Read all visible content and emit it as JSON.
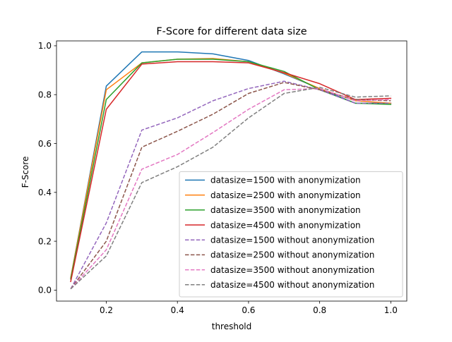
{
  "chart_data": {
    "type": "line",
    "title": "F-Score for different data size",
    "xlabel": "threshold",
    "ylabel": "F-Score",
    "xlim": [
      0.06,
      1.045
    ],
    "ylim": [
      -0.045,
      1.02
    ],
    "xticks": [
      0.2,
      0.4,
      0.6,
      0.8,
      1.0
    ],
    "xtick_labels": [
      "0.2",
      "0.4",
      "0.6",
      "0.8",
      "1.0"
    ],
    "yticks": [
      0.0,
      0.2,
      0.4,
      0.6,
      0.8,
      1.0
    ],
    "ytick_labels": [
      "0.0",
      "0.2",
      "0.4",
      "0.6",
      "0.8",
      "1.0"
    ],
    "grid": false,
    "legend_position": "lower-right",
    "x": [
      0.1,
      0.2,
      0.3,
      0.4,
      0.5,
      0.6,
      0.7,
      0.8,
      0.9,
      1.0
    ],
    "series": [
      {
        "name": "datasize=1500 with anonymization",
        "color": "#1f77b4",
        "style": "solid",
        "values": [
          0.05,
          0.835,
          0.975,
          0.975,
          0.967,
          0.94,
          0.885,
          0.825,
          0.765,
          0.765
        ]
      },
      {
        "name": "datasize=2500 with anonymization",
        "color": "#ff7f0e",
        "style": "solid",
        "values": [
          0.05,
          0.82,
          0.93,
          0.945,
          0.948,
          0.935,
          0.888,
          0.825,
          0.775,
          0.765
        ]
      },
      {
        "name": "datasize=3500 with anonymization",
        "color": "#2ca02c",
        "style": "solid",
        "values": [
          0.045,
          0.78,
          0.93,
          0.945,
          0.945,
          0.935,
          0.895,
          0.82,
          0.765,
          0.76
        ]
      },
      {
        "name": "datasize=4500 with anonymization",
        "color": "#d62728",
        "style": "solid",
        "values": [
          0.035,
          0.74,
          0.925,
          0.935,
          0.935,
          0.93,
          0.89,
          0.845,
          0.78,
          0.785
        ]
      },
      {
        "name": "datasize=1500 without anonymization",
        "color": "#9467bd",
        "style": "dashed",
        "values": [
          0.005,
          0.275,
          0.655,
          0.705,
          0.775,
          0.825,
          0.855,
          0.82,
          0.765,
          0.765
        ]
      },
      {
        "name": "datasize=2500 without anonymization",
        "color": "#8c564b",
        "style": "dashed",
        "values": [
          0.005,
          0.2,
          0.585,
          0.65,
          0.72,
          0.805,
          0.85,
          0.82,
          0.78,
          0.775
        ]
      },
      {
        "name": "datasize=3500 without anonymization",
        "color": "#e377c2",
        "style": "dashed",
        "values": [
          0.005,
          0.165,
          0.495,
          0.555,
          0.645,
          0.74,
          0.82,
          0.825,
          0.775,
          0.78
        ]
      },
      {
        "name": "datasize=4500 without anonymization",
        "color": "#7f7f7f",
        "style": "dashed",
        "values": [
          0.005,
          0.14,
          0.44,
          0.505,
          0.585,
          0.705,
          0.805,
          0.83,
          0.79,
          0.795
        ]
      }
    ]
  }
}
